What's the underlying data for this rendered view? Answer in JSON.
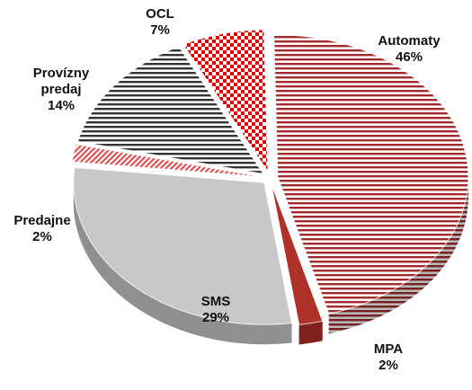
{
  "chart_data": {
    "type": "pie",
    "categories": [
      "Automaty",
      "MPA",
      "SMS",
      "Predajne",
      "Provízny predaj",
      "OCL"
    ],
    "values": [
      46,
      2,
      29,
      2,
      14,
      7
    ],
    "value_labels": [
      "46%",
      "2%",
      "29%",
      "2%",
      "14%",
      "7%"
    ],
    "colors": [
      "#a52a2a",
      "#b0302a",
      "#c8c8c8",
      "#e05050",
      "#333333",
      "#e00000"
    ],
    "patterns": [
      "hstripes",
      "solid",
      "solid",
      "diagonal",
      "hstripes",
      "checker"
    ]
  }
}
